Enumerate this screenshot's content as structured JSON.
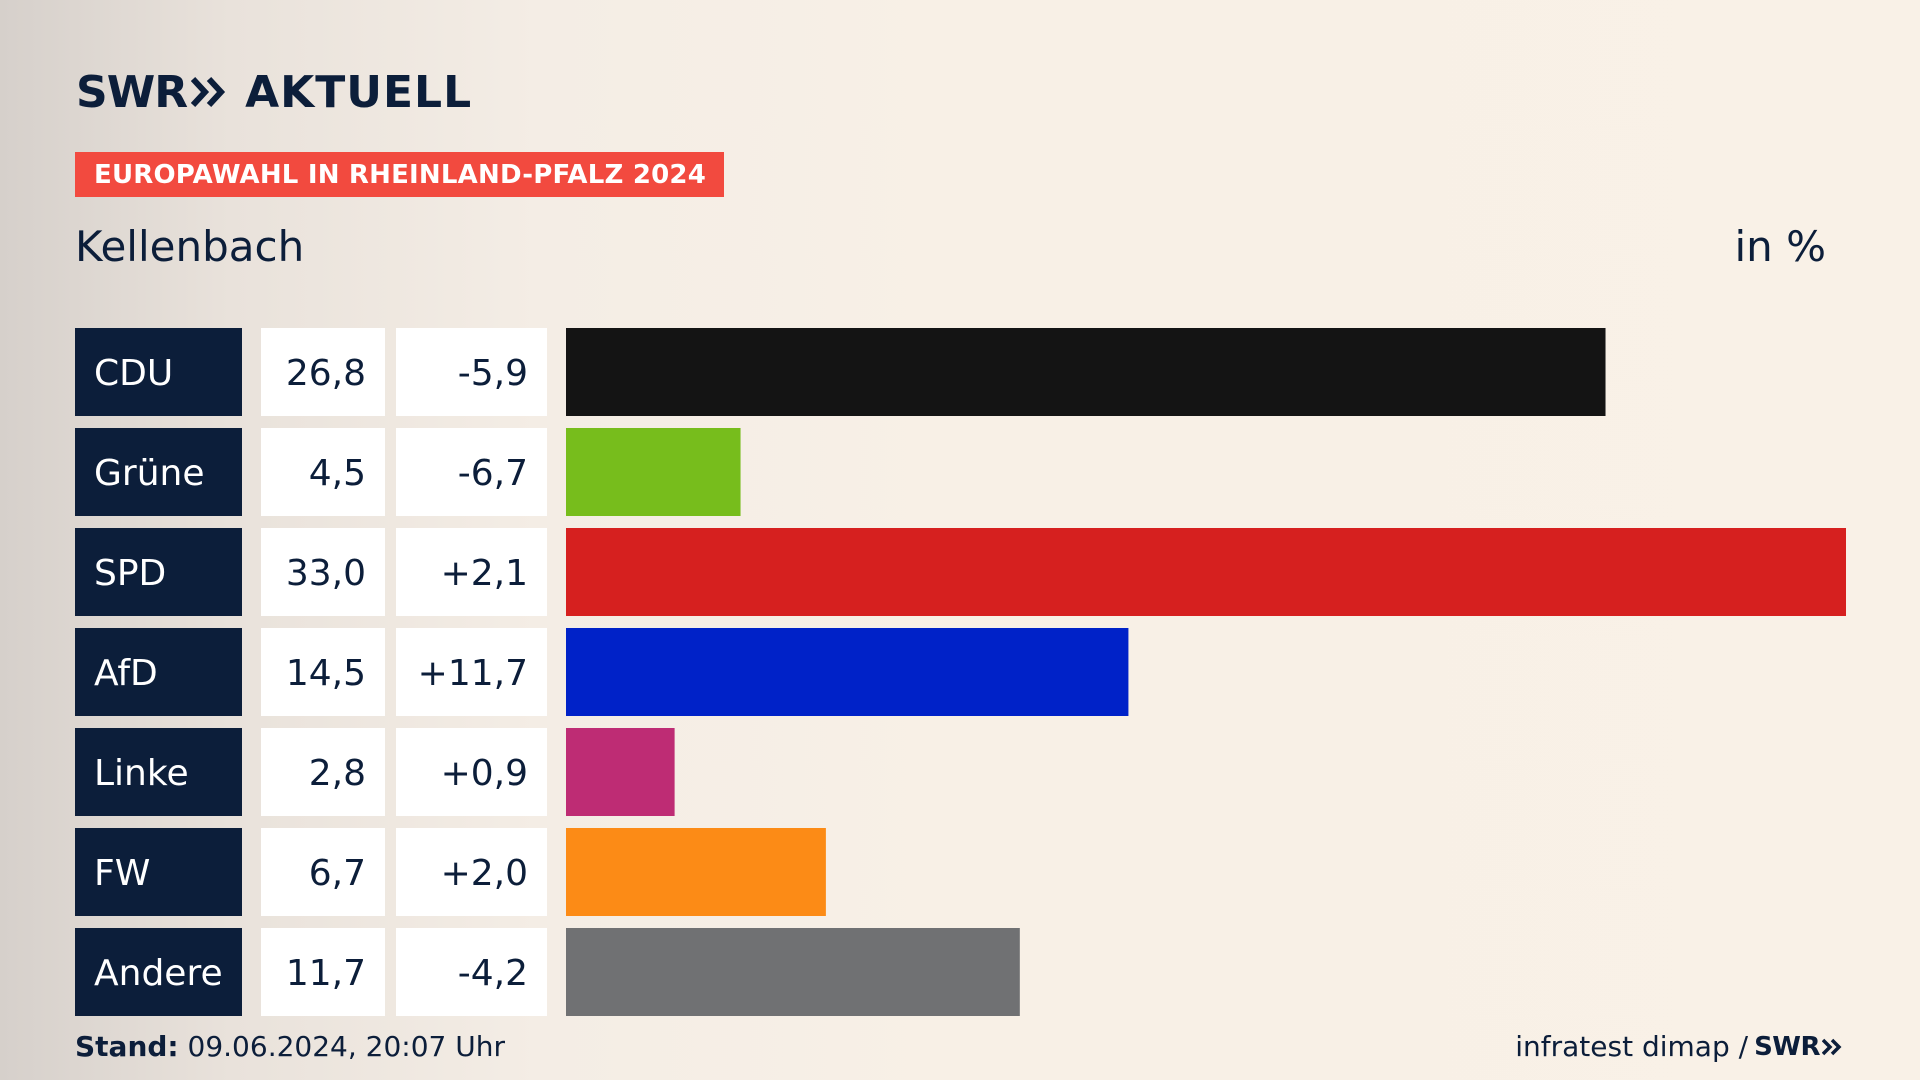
{
  "header": {
    "logo_text": "SWR",
    "logo_suffix": "AKTUELL",
    "banner": "EUROPAWAHL IN RHEINLAND-PFALZ 2024"
  },
  "location": "Kellenbach",
  "unit_label": "in %",
  "footer": {
    "stand_label": "Stand:",
    "stand_value": "09.06.2024, 20:07 Uhr",
    "source": "infratest dimap /",
    "source_brand": "SWR"
  },
  "chart_data": {
    "type": "bar",
    "orientation": "horizontal",
    "categories": [
      "CDU",
      "Grüne",
      "SPD",
      "AfD",
      "Linke",
      "FW",
      "Andere"
    ],
    "values": [
      26.8,
      4.5,
      33.0,
      14.5,
      2.8,
      6.7,
      11.7
    ],
    "value_labels": [
      "26,8",
      "4,5",
      "33,0",
      "14,5",
      "2,8",
      "6,7",
      "11,7"
    ],
    "change_labels": [
      "-5,9",
      "-6,7",
      "+2,1",
      "+11,7",
      "+0,9",
      "+2,0",
      "-4,2"
    ],
    "colors": [
      "#141414",
      "#77bd1c",
      "#d6201f",
      "#0022c8",
      "#be2c74",
      "#fc8b16",
      "#707173"
    ],
    "xlim": [
      0,
      33.0
    ]
  }
}
